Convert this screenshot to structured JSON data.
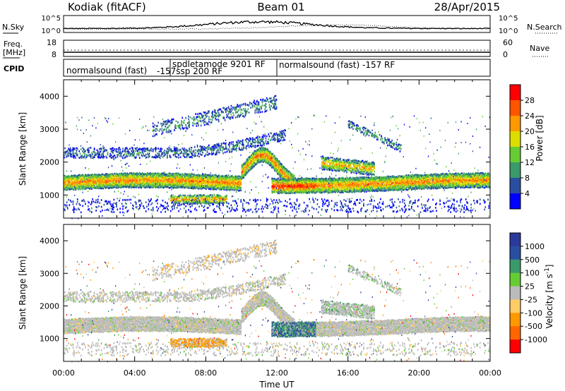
{
  "header": {
    "station": "Kodiak (fitACF)",
    "beam": "Beam 01",
    "date": "28/Apr/2015"
  },
  "strips": {
    "nsky_label": "N.Sky",
    "nsearch_label": "N.Search",
    "freq_label": "Freq.",
    "freq_unit": "[MHz]",
    "nave_label": "Nave",
    "cpid_label": "CPID",
    "noise_ticks_left": [
      "10^5",
      "10^0"
    ],
    "noise_ticks_right": [
      "10^5",
      "10^0"
    ],
    "freq_ticks": [
      "18",
      "8"
    ],
    "nave_ticks": [
      "60",
      "0"
    ],
    "cpid_segments": [
      {
        "label": "normalsound (fast)",
        "start_hour": 0,
        "end_hour": 6
      },
      {
        "label": "spdletamode 9201 RF",
        "start_hour": 6,
        "end_hour": 12
      },
      {
        "label": "-157ssp 200 RF",
        "start_hour": 6,
        "end_hour": 12
      },
      {
        "label": "normalsound (fast) -157 RF",
        "start_hour": 12,
        "end_hour": 24
      }
    ]
  },
  "colors": {
    "power": [
      "#0000ff",
      "#2a4ea0",
      "#3a9a6a",
      "#66cc33",
      "#dddd00",
      "#ff9900",
      "#ff5500",
      "#ff0000"
    ],
    "velocity": [
      "#ff0000",
      "#ff6600",
      "#ff9900",
      "#ffcc66",
      "#bbbbbb",
      "#66cc33",
      "#3a9a6a",
      "#2a4ea0",
      "#2a3a9a"
    ]
  },
  "chart_data": [
    {
      "type": "heatmap",
      "name": "power",
      "ylabel": "Slant Range [km]",
      "yticks": [
        "1000",
        "2000",
        "3000",
        "4000"
      ],
      "ylim": [
        300,
        4500
      ],
      "xlim_hours": [
        0,
        24
      ],
      "colorbar_label": "Power [dB]",
      "colorbar_ticks": [
        "4",
        "8",
        "12",
        "16",
        "20",
        "24",
        "28"
      ]
    },
    {
      "type": "heatmap",
      "name": "velocity",
      "ylabel": "Slant Range [km]",
      "yticks": [
        "1000",
        "2000",
        "3000",
        "4000"
      ],
      "ylim": [
        300,
        4500
      ],
      "xlim_hours": [
        0,
        24
      ],
      "colorbar_label": "Velocity [m s^-1]",
      "colorbar_ticks": [
        "1000",
        "500",
        "100",
        "25",
        "-25",
        "-100",
        "-500",
        "-1000"
      ]
    }
  ],
  "x_axis": {
    "ticks": [
      "00:00",
      "04:00",
      "08:00",
      "12:00",
      "16:00",
      "20:00",
      "00:00"
    ],
    "label": "Time UT"
  }
}
